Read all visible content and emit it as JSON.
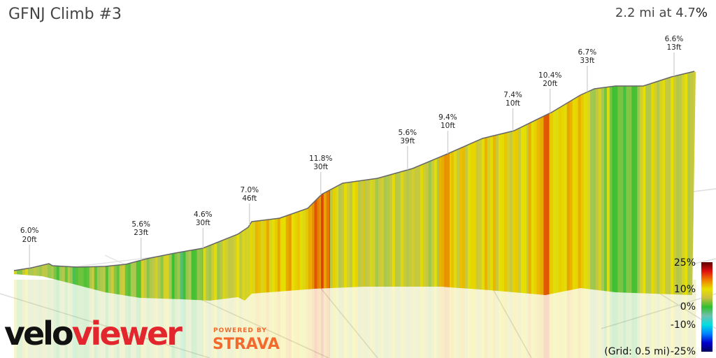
{
  "header": {
    "title": "GFNJ Climb #3",
    "summary": "2.2 mi at 4.7%"
  },
  "chart_data": {
    "type": "area",
    "title": "GFNJ Climb #3",
    "subtitle": "2.2 mi at 4.7%",
    "distance_mi": 2.2,
    "average_grade_pct": 4.7,
    "grid_note": "(Grid: 0.5 mi)",
    "annotations": [
      {
        "distance_mi": 0.05,
        "grade": "6.0%",
        "gain": "20ft"
      },
      {
        "distance_mi": 0.41,
        "grade": "5.6%",
        "gain": "23ft"
      },
      {
        "distance_mi": 0.61,
        "grade": "4.6%",
        "gain": "30ft"
      },
      {
        "distance_mi": 0.76,
        "grade": "7.0%",
        "gain": "46ft"
      },
      {
        "distance_mi": 0.99,
        "grade": "11.8%",
        "gain": "30ft"
      },
      {
        "distance_mi": 1.27,
        "grade": "5.6%",
        "gain": "39ft"
      },
      {
        "distance_mi": 1.4,
        "grade": "9.4%",
        "gain": "10ft"
      },
      {
        "distance_mi": 1.61,
        "grade": "7.4%",
        "gain": "10ft"
      },
      {
        "distance_mi": 1.73,
        "grade": "10.4%",
        "gain": "20ft"
      },
      {
        "distance_mi": 1.85,
        "grade": "6.7%",
        "gain": "33ft"
      },
      {
        "distance_mi": 2.13,
        "grade": "6.6%",
        "gain": "13ft"
      }
    ],
    "grade_segments": [
      [
        0.0,
        4
      ],
      [
        0.11,
        2
      ],
      [
        0.18,
        1
      ],
      [
        0.25,
        3
      ],
      [
        0.41,
        4
      ],
      [
        0.5,
        1
      ],
      [
        0.61,
        5
      ],
      [
        0.75,
        6
      ],
      [
        0.76,
        8
      ],
      [
        0.96,
        11
      ],
      [
        0.99,
        12
      ],
      [
        1.02,
        6
      ],
      [
        1.13,
        5
      ],
      [
        1.37,
        10
      ],
      [
        1.41,
        7
      ],
      [
        1.66,
        9
      ],
      [
        1.7,
        10.4
      ],
      [
        1.73,
        8
      ],
      [
        1.85,
        4
      ],
      [
        1.93,
        1
      ],
      [
        2.02,
        5
      ],
      [
        2.2,
        5
      ]
    ],
    "legend": {
      "ticks": [
        "25%",
        "10%",
        "0%",
        "-10%",
        "-25%"
      ],
      "colors": [
        "#5a0000",
        "#e01010",
        "#f08000",
        "#e8e000",
        "#c8c040",
        "#30c030",
        "#70c0b0",
        "#00e0e0",
        "#0080ff",
        "#0000d0",
        "#000060"
      ]
    }
  },
  "branding": {
    "logo_a": "velo",
    "logo_b": "viewer",
    "powered": "POWERED BY",
    "strava": "STRAVA"
  }
}
